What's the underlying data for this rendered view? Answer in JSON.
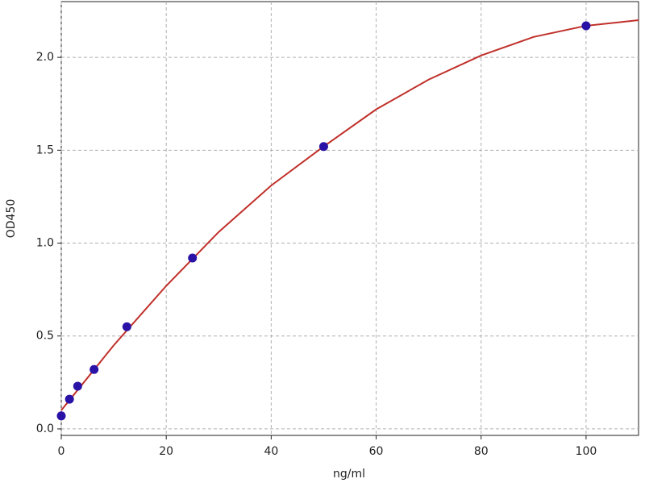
{
  "chart_data": {
    "type": "scatter",
    "x_label": "ng/ml",
    "y_label": "OD450",
    "xlim": [
      0,
      110
    ],
    "ylim": [
      -0.035,
      2.3
    ],
    "xticks": [
      0,
      20,
      40,
      60,
      80,
      100
    ],
    "yticks": [
      {
        "value": 0,
        "label": "0.0"
      },
      0.5,
      {
        "value": 1,
        "label": "1.0"
      },
      1.5,
      {
        "value": 2,
        "label": "2.0"
      }
    ],
    "grid": true,
    "series": [
      {
        "type": "line",
        "color": "#c0302a",
        "x": [
          0,
          10,
          20,
          30,
          40,
          50,
          60,
          70,
          80,
          90,
          100,
          110
        ],
        "values": [
          0.1,
          0.45,
          0.77,
          1.06,
          1.31,
          1.52,
          1.72,
          1.88,
          2.01,
          2.11,
          2.17,
          2.2
        ]
      },
      {
        "type": "scatter",
        "color": "#2a12a6",
        "x": [
          0,
          1.5625,
          3.125,
          6.25,
          12.5,
          25,
          50,
          100
        ],
        "values": [
          0.07,
          0.16,
          0.23,
          0.32,
          0.55,
          0.92,
          1.52,
          2.17
        ]
      }
    ]
  }
}
